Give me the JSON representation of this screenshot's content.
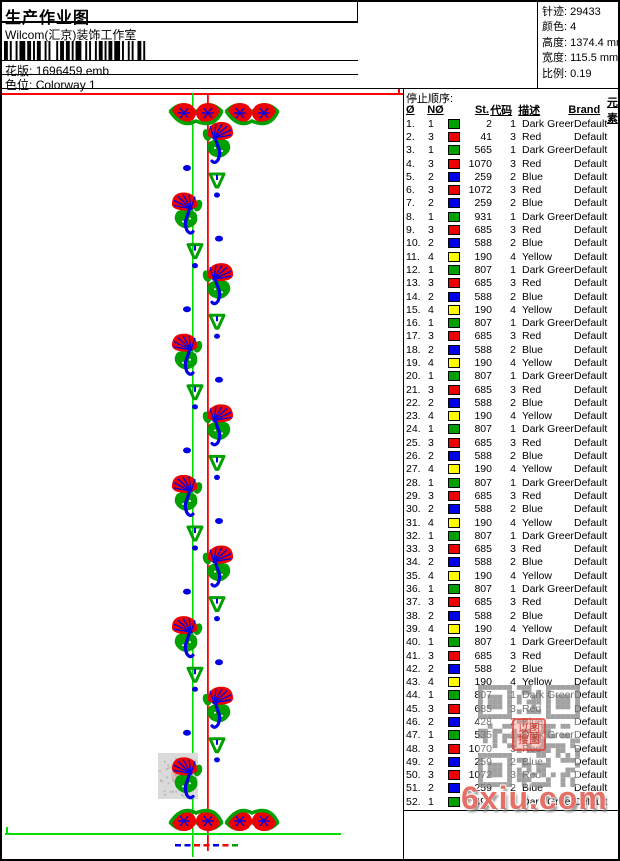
{
  "header": {
    "title": "生产作业图",
    "studio": "Wilcom(汇京)装饰工作室",
    "pattern_label": "花版:",
    "pattern_value": "1696459.emb",
    "colorway_label": "色位:",
    "colorway_value": "Colorway 1",
    "info": [
      {
        "label": "针迹:",
        "value": "29433"
      },
      {
        "label": "颜色:",
        "value": "4"
      },
      {
        "label": "高度:",
        "value": "1374.4 mm"
      },
      {
        "label": "宽度:",
        "value": "115.5 mm"
      },
      {
        "label": "比例:",
        "value": "0.19"
      }
    ]
  },
  "stop_sequence": {
    "title": "停止顺序:",
    "columns": [
      "Ø",
      "NØ",
      "St.",
      "代码",
      "描述",
      "Brand",
      "元素"
    ],
    "rows": [
      [
        1,
        "green",
        2,
        1,
        "Dark Green",
        "Default"
      ],
      [
        3,
        "red",
        41,
        3,
        "Red",
        "Default"
      ],
      [
        1,
        "green",
        565,
        1,
        "Dark Green",
        "Default"
      ],
      [
        3,
        "red",
        1070,
        3,
        "Red",
        "Default"
      ],
      [
        2,
        "blue",
        259,
        2,
        "Blue",
        "Default"
      ],
      [
        3,
        "red",
        1072,
        3,
        "Red",
        "Default"
      ],
      [
        2,
        "blue",
        259,
        2,
        "Blue",
        "Default"
      ],
      [
        1,
        "green",
        931,
        1,
        "Dark Green",
        "Default"
      ],
      [
        3,
        "red",
        685,
        3,
        "Red",
        "Default"
      ],
      [
        2,
        "blue",
        588,
        2,
        "Blue",
        "Default"
      ],
      [
        4,
        "yellow",
        190,
        4,
        "Yellow",
        "Default"
      ],
      [
        1,
        "green",
        807,
        1,
        "Dark Green",
        "Default"
      ],
      [
        3,
        "red",
        685,
        3,
        "Red",
        "Default"
      ],
      [
        2,
        "blue",
        588,
        2,
        "Blue",
        "Default"
      ],
      [
        4,
        "yellow",
        190,
        4,
        "Yellow",
        "Default"
      ],
      [
        1,
        "green",
        807,
        1,
        "Dark Green",
        "Default"
      ],
      [
        3,
        "red",
        685,
        3,
        "Red",
        "Default"
      ],
      [
        2,
        "blue",
        588,
        2,
        "Blue",
        "Default"
      ],
      [
        4,
        "yellow",
        190,
        4,
        "Yellow",
        "Default"
      ],
      [
        1,
        "green",
        807,
        1,
        "Dark Green",
        "Default"
      ],
      [
        3,
        "red",
        685,
        3,
        "Red",
        "Default"
      ],
      [
        2,
        "blue",
        588,
        2,
        "Blue",
        "Default"
      ],
      [
        4,
        "yellow",
        190,
        4,
        "Yellow",
        "Default"
      ],
      [
        1,
        "green",
        807,
        1,
        "Dark Green",
        "Default"
      ],
      [
        3,
        "red",
        685,
        3,
        "Red",
        "Default"
      ],
      [
        2,
        "blue",
        588,
        2,
        "Blue",
        "Default"
      ],
      [
        4,
        "yellow",
        190,
        4,
        "Yellow",
        "Default"
      ],
      [
        1,
        "green",
        807,
        1,
        "Dark Green",
        "Default"
      ],
      [
        3,
        "red",
        685,
        3,
        "Red",
        "Default"
      ],
      [
        2,
        "blue",
        588,
        2,
        "Blue",
        "Default"
      ],
      [
        4,
        "yellow",
        190,
        4,
        "Yellow",
        "Default"
      ],
      [
        1,
        "green",
        807,
        1,
        "Dark Green",
        "Default"
      ],
      [
        3,
        "red",
        685,
        3,
        "Red",
        "Default"
      ],
      [
        2,
        "blue",
        588,
        2,
        "Blue",
        "Default"
      ],
      [
        4,
        "yellow",
        190,
        4,
        "Yellow",
        "Default"
      ],
      [
        1,
        "green",
        807,
        1,
        "Dark Green",
        "Default"
      ],
      [
        3,
        "red",
        685,
        3,
        "Red",
        "Default"
      ],
      [
        2,
        "blue",
        588,
        2,
        "Blue",
        "Default"
      ],
      [
        4,
        "yellow",
        190,
        4,
        "Yellow",
        "Default"
      ],
      [
        1,
        "green",
        807,
        1,
        "Dark Green",
        "Default"
      ],
      [
        3,
        "red",
        685,
        3,
        "Red",
        "Default"
      ],
      [
        2,
        "blue",
        588,
        2,
        "Blue",
        "Default"
      ],
      [
        4,
        "yellow",
        190,
        4,
        "Yellow",
        "Default"
      ],
      [
        1,
        "green",
        807,
        1,
        "Dark Green",
        "Default"
      ],
      [
        3,
        "red",
        685,
        3,
        "Red",
        "Default"
      ],
      [
        2,
        "blue",
        428,
        2,
        "Blue",
        "Default"
      ],
      [
        1,
        "green",
        535,
        1,
        "Dark Green",
        "Default"
      ],
      [
        3,
        "red",
        1070,
        3,
        "Red",
        "Default"
      ],
      [
        2,
        "blue",
        259,
        2,
        "Blue",
        "Default"
      ],
      [
        3,
        "red",
        1072,
        3,
        "Red",
        "Default"
      ],
      [
        2,
        "blue",
        259,
        2,
        "Blue",
        "Default"
      ],
      [
        1,
        "green",
        494,
        1,
        "Dark Green",
        "Default"
      ]
    ]
  },
  "colors": {
    "green": "#00A000",
    "red": "#EE0000",
    "blue": "#0000E8",
    "yellow": "#FFFF00",
    "guide_green": "#00DC00",
    "guide_red": "#FF0000"
  },
  "watermark": {
    "domain": "6xiu.com",
    "seal_text": "以图搜图"
  }
}
